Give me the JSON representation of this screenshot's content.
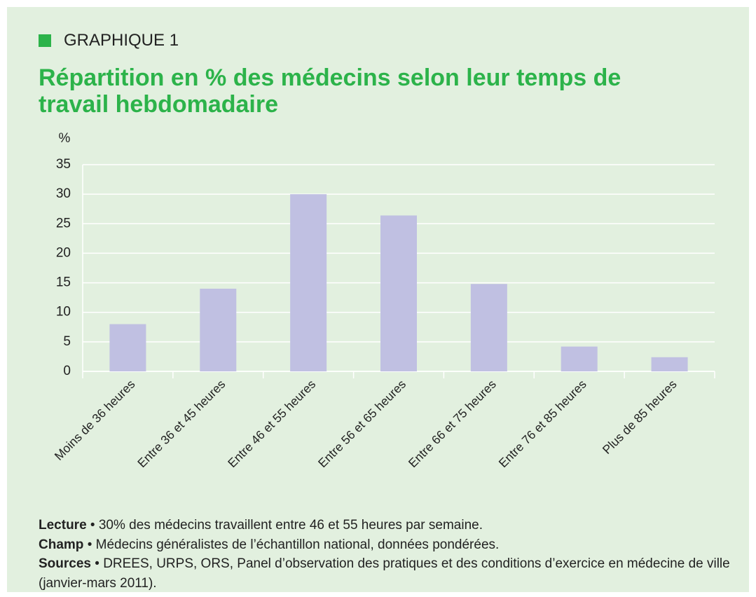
{
  "header": "GRAPHIQUE 1",
  "chart_data": {
    "type": "bar",
    "title": "Répartition en % des médecins selon leur temps de travail hebdomadaire",
    "y_label": "%",
    "categories": [
      "Moins de 36 heures",
      "Entre 36 et 45 heures",
      "Entre 46 et 55 heures",
      "Entre 56 et 65 heures",
      "Entre 66 et 75 heures",
      "Entre 76 et 85 heures",
      "Plus de 85 heures"
    ],
    "values": [
      8,
      14,
      30,
      26.4,
      14.8,
      4.2,
      2.4
    ],
    "color": "#c0c0e2",
    "ylim": [
      0,
      35
    ],
    "yticks": [
      0,
      5,
      10,
      15,
      20,
      25,
      30,
      35
    ],
    "grid": true
  },
  "notes": [
    {
      "label": "Lecture",
      "text": "•  30% des médecins travaillent entre 46 et 55 heures par semaine."
    },
    {
      "label": "Champ",
      "text": "• Médecins généralistes de l’échantillon national, données pondérées."
    },
    {
      "label": "Sources",
      "text": "• DREES, URPS, ORS, Panel d’observation des pratiques et des conditions d’exercice en médecine de ville (janvier-mars 2011)."
    }
  ]
}
